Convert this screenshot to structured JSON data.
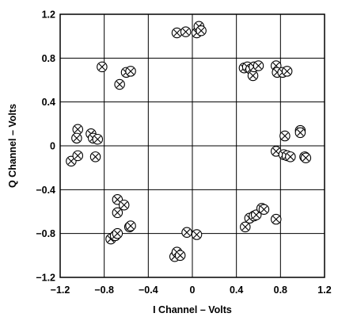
{
  "chart_data": {
    "type": "scatter",
    "title": "",
    "xlabel": "I Channel – Volts",
    "ylabel": "Q Channel – Volts",
    "xlim": [
      -1.2,
      1.2
    ],
    "ylim": [
      -1.2,
      1.2
    ],
    "grid": true,
    "marker": "circle-x",
    "x_ticks": [
      -1.2,
      -0.8,
      -0.4,
      0,
      0.4,
      0.8,
      1.2
    ],
    "y_ticks": [
      -1.2,
      -0.8,
      -0.4,
      0,
      0.4,
      0.8,
      1.2
    ],
    "x_tick_labels": [
      "−1.2",
      "−0.8",
      "−0.4",
      "0",
      "0.4",
      "0.8",
      "1.2"
    ],
    "y_tick_labels": [
      "−1.2",
      "−0.8",
      "−0.4",
      "0",
      "0.4",
      "0.8",
      "1.2"
    ],
    "series": [
      {
        "points": [
          [
            -0.14,
            1.03
          ],
          [
            -0.06,
            1.04
          ],
          [
            0.04,
            1.03
          ],
          [
            0.06,
            1.09
          ],
          [
            0.08,
            1.05
          ],
          [
            -0.82,
            0.72
          ],
          [
            -0.66,
            0.56
          ],
          [
            -0.6,
            0.67
          ],
          [
            -0.56,
            0.68
          ],
          [
            0.47,
            0.71
          ],
          [
            0.5,
            0.72
          ],
          [
            0.53,
            0.7
          ],
          [
            0.55,
            0.64
          ],
          [
            0.56,
            0.72
          ],
          [
            0.6,
            0.73
          ],
          [
            0.76,
            0.73
          ],
          [
            0.77,
            0.67
          ],
          [
            0.82,
            0.67
          ],
          [
            0.86,
            0.68
          ],
          [
            -1.04,
            0.15
          ],
          [
            -1.05,
            0.07
          ],
          [
            -1.1,
            -0.14
          ],
          [
            -1.04,
            -0.09
          ],
          [
            -0.92,
            0.11
          ],
          [
            -0.9,
            0.07
          ],
          [
            -0.88,
            -0.1
          ],
          [
            -0.86,
            0.06
          ],
          [
            0.76,
            -0.05
          ],
          [
            0.83,
            -0.08
          ],
          [
            0.84,
            0.09
          ],
          [
            0.86,
            -0.09
          ],
          [
            0.89,
            -0.1
          ],
          [
            0.98,
            0.14
          ],
          [
            0.98,
            0.12
          ],
          [
            1.02,
            -0.1
          ],
          [
            1.03,
            -0.11
          ],
          [
            -0.68,
            -0.49
          ],
          [
            -0.68,
            -0.61
          ],
          [
            -0.62,
            -0.54
          ],
          [
            -0.74,
            -0.85
          ],
          [
            -0.7,
            -0.82
          ],
          [
            -0.68,
            -0.8
          ],
          [
            -0.57,
            -0.74
          ],
          [
            -0.56,
            -0.73
          ],
          [
            -0.16,
            -1.01
          ],
          [
            -0.14,
            -0.97
          ],
          [
            -0.11,
            -1.0
          ],
          [
            -0.05,
            -0.79
          ],
          [
            0.04,
            -0.81
          ],
          [
            0.48,
            -0.74
          ],
          [
            0.52,
            -0.66
          ],
          [
            0.56,
            -0.64
          ],
          [
            0.58,
            -0.63
          ],
          [
            0.63,
            -0.57
          ],
          [
            0.65,
            -0.58
          ],
          [
            0.76,
            -0.67
          ]
        ]
      }
    ]
  }
}
